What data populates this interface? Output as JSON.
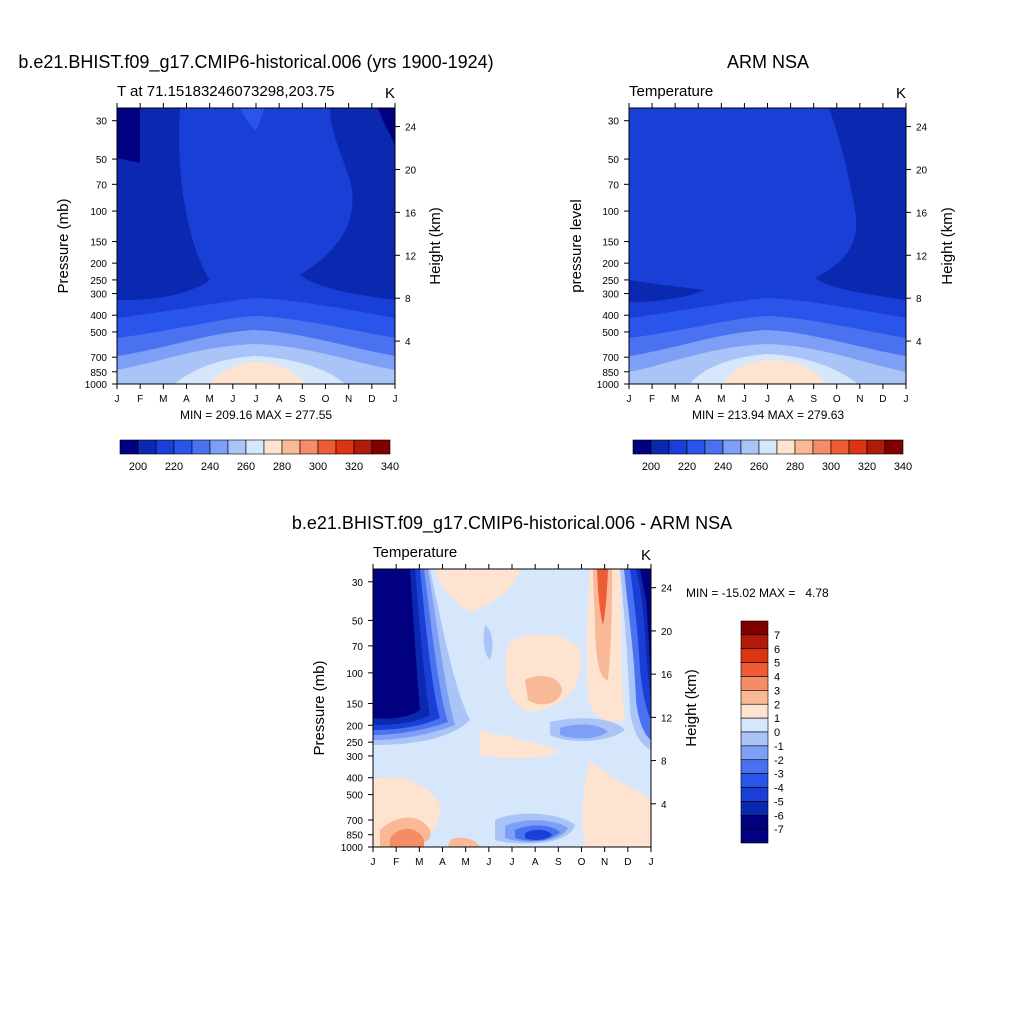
{
  "colors": {
    "abs_levels": [
      "#000080",
      "#0a28b0",
      "#1a3fd6",
      "#2a55ea",
      "#4a72f0",
      "#7d9ff5",
      "#aac4f8",
      "#d6e7fc",
      "#fde3d0",
      "#f9b896",
      "#f48c66",
      "#ee5c36",
      "#dc3514",
      "#b01a08",
      "#800000"
    ],
    "diff_levels": [
      "#000080",
      "#0a28b0",
      "#1a3fd6",
      "#2a55ea",
      "#4a72f0",
      "#7d9ff5",
      "#aac4f8",
      "#d6e7fc",
      "#fde3d0",
      "#f9b896",
      "#f48c66",
      "#ee5c36",
      "#dc3514",
      "#b01a08",
      "#800000"
    ]
  },
  "chart_data": [
    {
      "type": "heatmap",
      "title": "b.e21.BHIST.f09_g17.CMIP6-historical.006 (yrs 1900-1924)",
      "subtitle_left": "T at 71.15183246073298,203.75",
      "subtitle_right": "K",
      "ylabel": "Pressure (mb)",
      "ylabel_right": "Height (km)",
      "xticks": [
        "J",
        "F",
        "M",
        "A",
        "M",
        "J",
        "J",
        "A",
        "S",
        "O",
        "N",
        "D",
        "J"
      ],
      "yticks": [
        "30",
        "50",
        "70",
        "100",
        "150",
        "200",
        "250",
        "300",
        "400",
        "500",
        "700",
        "850",
        "1000"
      ],
      "yticks_right": [
        "24",
        "20",
        "16",
        "12",
        "8",
        "4"
      ],
      "footer": "MIN = 209.16 MAX = 277.55",
      "colorbar_labels": [
        "200",
        "220",
        "240",
        "260",
        "280",
        "300",
        "320",
        "340"
      ],
      "min": 209.16,
      "max": 277.55
    },
    {
      "type": "heatmap",
      "title": "ARM NSA",
      "subtitle_left": "Temperature",
      "subtitle_right": "K",
      "ylabel": "pressure level",
      "ylabel_right": "Height (km)",
      "xticks": [
        "J",
        "F",
        "M",
        "A",
        "M",
        "J",
        "J",
        "A",
        "S",
        "O",
        "N",
        "D",
        "J"
      ],
      "yticks": [
        "30",
        "50",
        "70",
        "100",
        "150",
        "200",
        "250",
        "300",
        "400",
        "500",
        "700",
        "850",
        "1000"
      ],
      "yticks_right": [
        "24",
        "20",
        "16",
        "12",
        "8",
        "4"
      ],
      "footer": "MIN = 213.94 MAX = 279.63",
      "colorbar_labels": [
        "200",
        "220",
        "240",
        "260",
        "280",
        "300",
        "320",
        "340"
      ],
      "min": 213.94,
      "max": 279.63
    },
    {
      "type": "heatmap",
      "title": "b.e21.BHIST.f09_g17.CMIP6-historical.006 - ARM NSA",
      "subtitle_left": "Temperature",
      "subtitle_right": "K",
      "ylabel": "Pressure (mb)",
      "ylabel_right": "Height (km)",
      "xticks": [
        "J",
        "F",
        "M",
        "A",
        "M",
        "J",
        "J",
        "A",
        "S",
        "O",
        "N",
        "D",
        "J"
      ],
      "yticks": [
        "30",
        "50",
        "70",
        "100",
        "150",
        "200",
        "250",
        "300",
        "400",
        "500",
        "700",
        "850",
        "1000"
      ],
      "yticks_right": [
        "24",
        "20",
        "16",
        "12",
        "8",
        "4"
      ],
      "minmax": "MIN = -15.02 MAX =   4.78",
      "colorbar_labels": [
        "7",
        "6",
        "5",
        "4",
        "3",
        "2",
        "1",
        "0",
        "-1",
        "-2",
        "-3",
        "-4",
        "-5",
        "-6",
        "-7"
      ],
      "min": -15.02,
      "max": 4.78
    }
  ]
}
